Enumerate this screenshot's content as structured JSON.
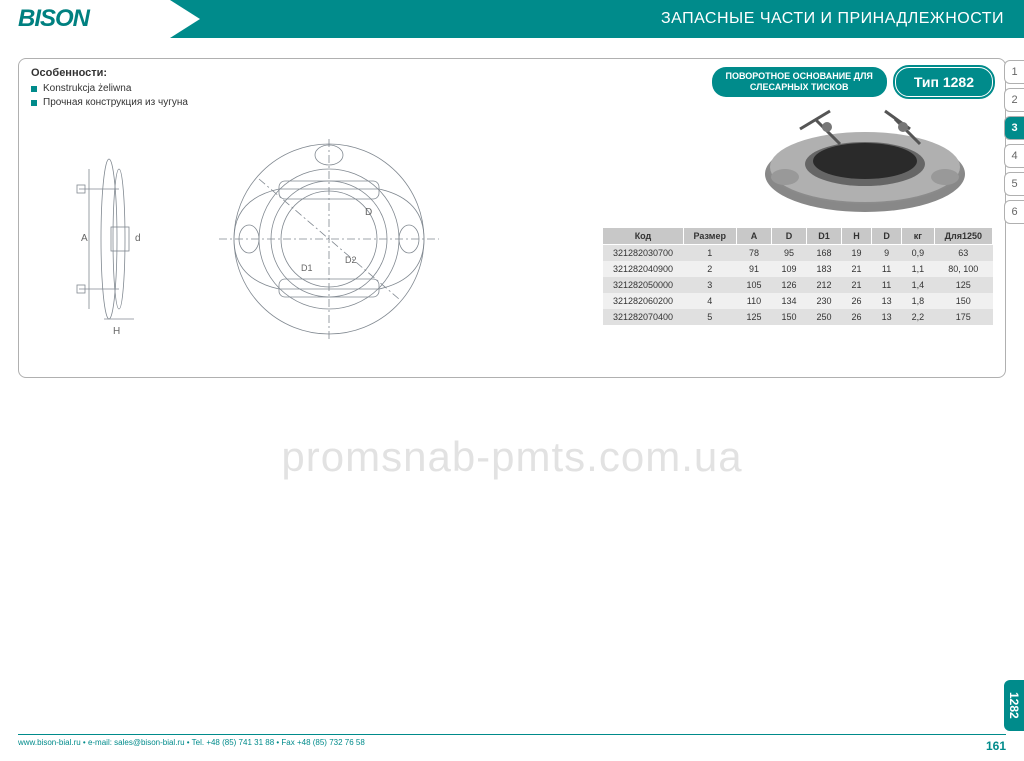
{
  "header": {
    "logo": "BISON",
    "title": "ЗАПАСНЫЕ ЧАСТИ И ПРИНАДЛЕЖНОСТИ"
  },
  "features": {
    "title": "Особенности:",
    "items": [
      "Konstrukcja żeliwna",
      "Прочная конструкция из чугуна"
    ]
  },
  "product": {
    "description_line1": "ПОВОРОТНОЕ ОСНОВАНИЕ ДЛЯ",
    "description_line2": "СЛЕСАРНЫХ ТИСКОВ",
    "type_label": "Тип 1282"
  },
  "table": {
    "columns": [
      "Код",
      "Размер",
      "A",
      "D",
      "D1",
      "H",
      "D",
      "кг",
      "Для1250"
    ],
    "rows": [
      [
        "321282030700",
        "1",
        "78",
        "95",
        "168",
        "19",
        "9",
        "0,9",
        "63"
      ],
      [
        "321282040900",
        "2",
        "91",
        "109",
        "183",
        "21",
        "11",
        "1,1",
        "80, 100"
      ],
      [
        "321282050000",
        "3",
        "105",
        "126",
        "212",
        "21",
        "11",
        "1,4",
        "125"
      ],
      [
        "321282060200",
        "4",
        "110",
        "134",
        "230",
        "26",
        "13",
        "1,8",
        "150"
      ],
      [
        "321282070400",
        "5",
        "125",
        "150",
        "250",
        "26",
        "13",
        "2,2",
        "175"
      ]
    ]
  },
  "side_tabs": {
    "items": [
      "1",
      "2",
      "3",
      "4",
      "5",
      "6"
    ],
    "active_index": 2
  },
  "bottom_tab": "1282",
  "page_number": "161",
  "footer": "www.bison-bial.ru • e-mail: sales@bison-bial.ru • Tel. +48 (85) 741 31 88 • Fax +48 (85) 732 76 58",
  "watermark": "promsnab-pmts.com.ua",
  "diagram": {
    "stroke": "#808890",
    "stroke_width": 0.8,
    "labels": [
      "A",
      "d",
      "H",
      "D",
      "D1",
      "D2"
    ]
  },
  "colors": {
    "teal": "#008b8b",
    "light_gray": "#e0e0e0",
    "header_gray": "#c8c8c8"
  }
}
